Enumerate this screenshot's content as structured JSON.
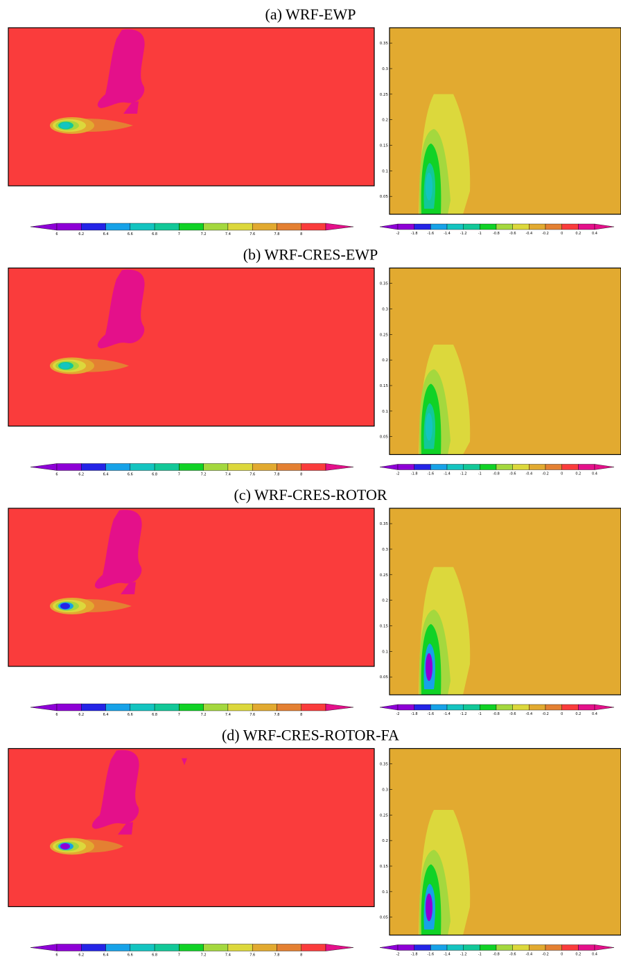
{
  "chart_data": {
    "type": "heatmap",
    "colors": {
      "purple": "#8e00d6",
      "blue": "#2424e6",
      "azure": "#17a2e8",
      "cyan": "#14c4c0",
      "teal": "#12c898",
      "green": "#10d226",
      "lightgreen": "#a4d83e",
      "yellow": "#dcd83c",
      "gold": "#e2aa30",
      "orange": "#e48032",
      "red": "#fa3c3c",
      "magenta": "#e4108a"
    },
    "colorbar_left": {
      "ticks": [
        "6",
        "6.2",
        "6.4",
        "6.6",
        "6.8",
        "7",
        "7.2",
        "7.4",
        "7.6",
        "7.8",
        "8"
      ],
      "range": [
        6,
        8
      ]
    },
    "colorbar_right": {
      "ticks": [
        "-2",
        "-1.8",
        "-1.6",
        "-1.4",
        "-1.2",
        "-1",
        "-0.8",
        "-0.6",
        "-0.4",
        "-0.2",
        "0",
        "0.2",
        "0.4"
      ],
      "range": [
        -2,
        0.4
      ]
    },
    "y_ticks_right": [
      "0.35",
      "0.3",
      "0.25",
      "0.2",
      "0.15",
      "0.1",
      "0.05"
    ],
    "panels": [
      {
        "title": "(a) WRF-EWP",
        "left_core": "cyan",
        "right_core": "cyan",
        "right_plume_top": 0.25
      },
      {
        "title": "(b) WRF-CRES-EWP",
        "left_core": "cyan",
        "right_core": "cyan",
        "right_plume_top": 0.23
      },
      {
        "title": "(c) WRF-CRES-ROTOR",
        "left_core": "blue",
        "right_core": "purple",
        "right_plume_top": 0.265
      },
      {
        "title": "(d) WRF-CRES-ROTOR-FA",
        "left_core": "purple",
        "right_core": "purple",
        "right_plume_top": 0.26
      }
    ]
  }
}
